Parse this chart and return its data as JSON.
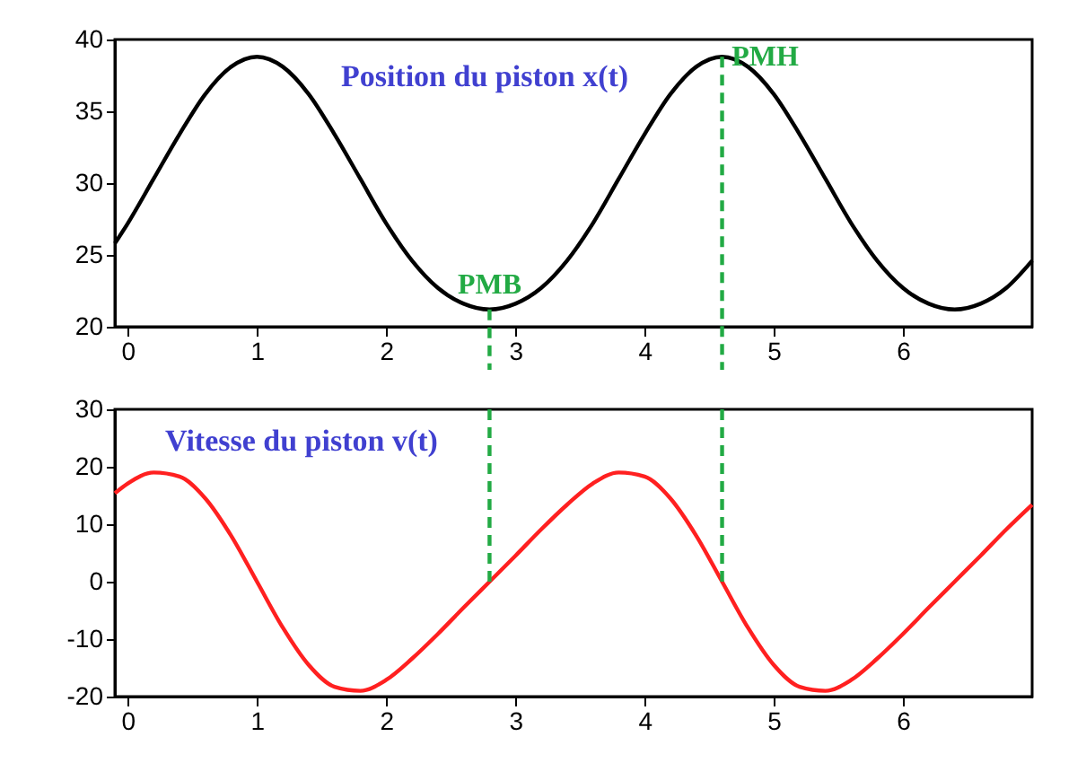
{
  "chart_data": [
    {
      "type": "line",
      "title": "Position du piston x(t)",
      "x": [
        -0.1,
        0,
        0.2,
        0.4,
        0.6,
        0.8,
        1.0,
        1.2,
        1.4,
        1.6,
        1.8,
        2.0,
        2.2,
        2.4,
        2.6,
        2.8,
        3.0,
        3.2,
        3.4,
        3.6,
        3.8,
        4.0,
        4.2,
        4.4,
        4.6,
        4.8,
        5.0,
        5.2,
        5.4,
        5.6,
        5.8,
        6.0,
        6.2,
        6.4,
        6.6,
        6.8,
        7.0
      ],
      "series": [
        {
          "color": "#000000",
          "values": [
            25.8,
            27.2,
            30.3,
            33.4,
            36.2,
            38.1,
            38.8,
            38.1,
            36.2,
            33.4,
            30.3,
            27.2,
            24.6,
            22.7,
            21.6,
            21.2,
            21.6,
            22.7,
            24.6,
            27.2,
            30.3,
            33.4,
            36.2,
            38.1,
            38.8,
            38.1,
            36.2,
            33.4,
            30.3,
            27.2,
            24.6,
            22.7,
            21.6,
            21.2,
            21.6,
            22.7,
            24.6
          ]
        }
      ],
      "xlim": [
        -0.1,
        7
      ],
      "xticks": [
        0,
        1,
        2,
        3,
        4,
        5,
        6
      ],
      "ylim": [
        20,
        40
      ],
      "yticks": [
        20,
        25,
        30,
        35,
        40
      ],
      "ref_lines": [
        {
          "axis": "x",
          "value": 2.8,
          "label": "PMB",
          "color": "#22aa44",
          "line_style": "dashed"
        },
        {
          "axis": "x",
          "value": 4.6,
          "label": "PMH",
          "color": "#22aa44",
          "line_style": "dashed"
        }
      ]
    },
    {
      "type": "line",
      "title": "Vitesse du piston v(t)",
      "x": [
        -0.1,
        0,
        0.2,
        0.4,
        0.6,
        0.8,
        1.0,
        1.2,
        1.4,
        1.6,
        1.8,
        2.0,
        2.2,
        2.4,
        2.6,
        2.8,
        3.0,
        3.2,
        3.4,
        3.6,
        3.8,
        4.0,
        4.2,
        4.4,
        4.6,
        4.8,
        5.0,
        5.2,
        5.4,
        5.6,
        5.8,
        6.0,
        6.2,
        6.4,
        6.6,
        6.8,
        7.0
      ],
      "series": [
        {
          "color": "#ff2020",
          "values": [
            15.4,
            17.1,
            19.0,
            18.3,
            14.5,
            8.0,
            0,
            -8.0,
            -14.5,
            -18.3,
            -19.0,
            -17.1,
            -13.4,
            -9.1,
            -4.5,
            0,
            4.5,
            9.1,
            13.4,
            17.1,
            19.0,
            18.3,
            14.5,
            8.0,
            0,
            -8.0,
            -14.5,
            -18.3,
            -19.0,
            -17.1,
            -13.4,
            -9.1,
            -4.5,
            0,
            4.5,
            9.1,
            13.4
          ]
        }
      ],
      "xlim": [
        -0.1,
        7
      ],
      "xticks": [
        0,
        1,
        2,
        3,
        4,
        5,
        6
      ],
      "ylim": [
        -20,
        30
      ],
      "yticks": [
        -20,
        -10,
        0,
        10,
        20,
        30
      ],
      "ref_lines": [
        {
          "axis": "x",
          "value": 2.8,
          "label": null,
          "color": "#22aa44",
          "line_style": "dashed"
        },
        {
          "axis": "x",
          "value": 4.6,
          "label": null,
          "color": "#22aa44",
          "line_style": "dashed"
        }
      ]
    }
  ]
}
